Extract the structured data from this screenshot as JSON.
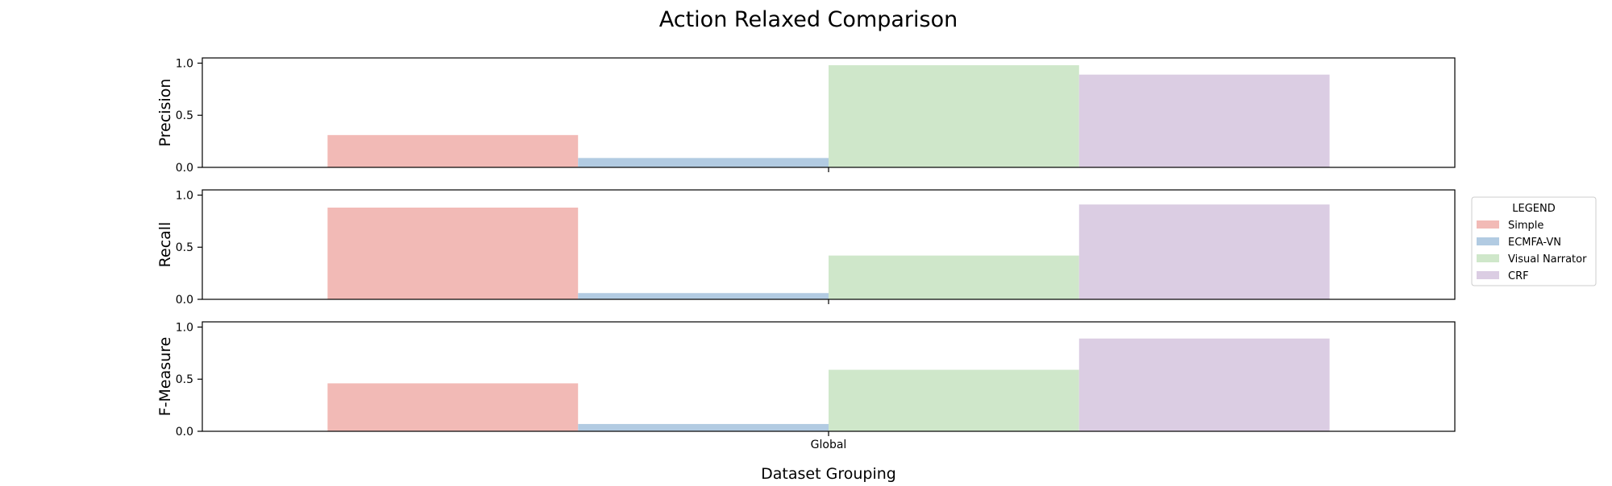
{
  "chart_data": {
    "type": "bar",
    "title": "Action Relaxed Comparison",
    "xlabel": "Dataset Grouping",
    "categories": [
      "Global"
    ],
    "ylim": [
      0,
      1.05
    ],
    "yticks": [
      "0.0",
      "0.5",
      "1.0"
    ],
    "grid": false,
    "legend": {
      "title": "LEGEND",
      "placement": "right",
      "entries": [
        "Simple",
        "ECMFA-VN",
        "Visual Narrator",
        "CRF"
      ]
    },
    "series_colors": [
      "#f2bab6",
      "#b2cbe2",
      "#cfe7ca",
      "#dbcde3"
    ],
    "subplots": [
      {
        "ylabel": "Precision",
        "series": [
          {
            "name": "Simple",
            "values": [
              0.31
            ]
          },
          {
            "name": "ECMFA-VN",
            "values": [
              0.09
            ]
          },
          {
            "name": "Visual Narrator",
            "values": [
              0.98
            ]
          },
          {
            "name": "CRF",
            "values": [
              0.89
            ]
          }
        ]
      },
      {
        "ylabel": "Recall",
        "series": [
          {
            "name": "Simple",
            "values": [
              0.88
            ]
          },
          {
            "name": "ECMFA-VN",
            "values": [
              0.06
            ]
          },
          {
            "name": "Visual Narrator",
            "values": [
              0.42
            ]
          },
          {
            "name": "CRF",
            "values": [
              0.91
            ]
          }
        ]
      },
      {
        "ylabel": "F-Measure",
        "series": [
          {
            "name": "Simple",
            "values": [
              0.46
            ]
          },
          {
            "name": "ECMFA-VN",
            "values": [
              0.07
            ]
          },
          {
            "name": "Visual Narrator",
            "values": [
              0.59
            ]
          },
          {
            "name": "CRF",
            "values": [
              0.89
            ]
          }
        ]
      }
    ]
  }
}
